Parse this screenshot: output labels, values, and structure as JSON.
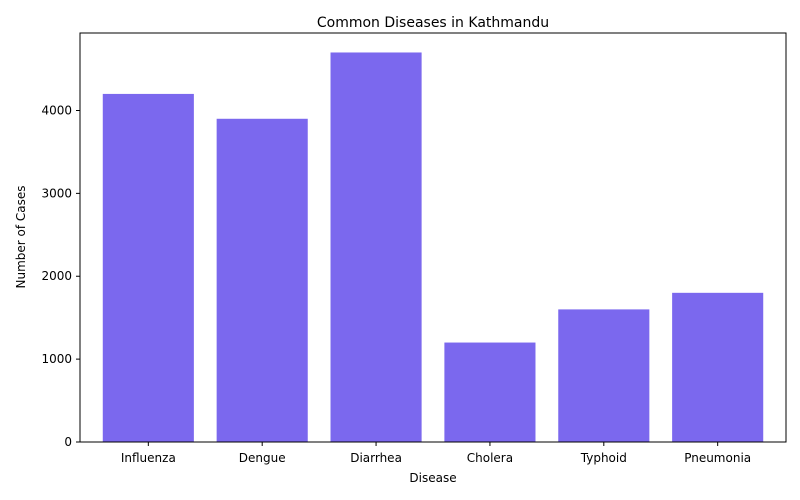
{
  "chart_data": {
    "type": "bar",
    "title": "Common Diseases in Kathmandu",
    "xlabel": "Disease",
    "ylabel": "Number of Cases",
    "categories": [
      "Influenza",
      "Dengue",
      "Diarrhea",
      "Cholera",
      "Typhoid",
      "Pneumonia"
    ],
    "values": [
      4200,
      3900,
      4700,
      1200,
      1600,
      1800
    ],
    "ylim": [
      0,
      4935
    ],
    "yticks": [
      0,
      1000,
      2000,
      3000,
      4000
    ],
    "bar_color": "#7b68ee",
    "grid": false,
    "legend": "none"
  }
}
